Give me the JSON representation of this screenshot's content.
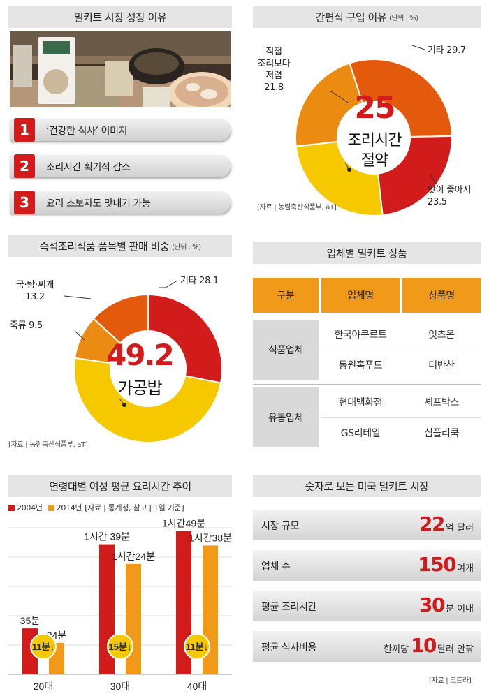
{
  "panel1": {
    "title": "밀키트 시장 성장 이유",
    "photo_alt": "밀키트 제품 사진",
    "reasons": [
      {
        "num": "1",
        "text": "‘건강한 식사’ 이미지"
      },
      {
        "num": "2",
        "text": "조리시간 획기적 감소"
      },
      {
        "num": "3",
        "text": "요리 초보자도 맛내기 가능"
      }
    ]
  },
  "panel2": {
    "title": "간편식 구입 이유",
    "unit": "(단위 : %)",
    "center_big": "25",
    "center_line1": "조리시간",
    "center_line2": "절약",
    "labels": {
      "other": [
        "기타 29.7"
      ],
      "cheap": [
        "직접",
        "조리보다",
        "저렴",
        "21.8"
      ],
      "taste": [
        "맛이 좋아서",
        "23.5"
      ]
    },
    "source": "[자료 | 농림축산식품부, aT]"
  },
  "panel3": {
    "title": "즉석조리식품 품목별 판매 비중",
    "unit": "(단위 : %)",
    "center_big": "49.2",
    "center_sub": "가공밥",
    "labels": {
      "other": [
        "기타 28.1"
      ],
      "soup": [
        "국·탕·찌개",
        "13.2"
      ],
      "porridge": [
        "죽류 9.5"
      ]
    },
    "source": "[자료 | 농림축산식품부, aT]"
  },
  "panel4": {
    "title": "업체별 밀키트 상품",
    "headers": [
      "구분",
      "업체명",
      "상품명"
    ],
    "groups": [
      {
        "category": "식품업체",
        "rows": [
          [
            "한국야쿠르트",
            "잇츠온"
          ],
          [
            "동원홈푸드",
            "더반찬"
          ]
        ]
      },
      {
        "category": "유통업체",
        "rows": [
          [
            "현대백화점",
            "셰프박스"
          ],
          [
            "GS리테일",
            "심플리쿡"
          ]
        ]
      }
    ]
  },
  "panel5": {
    "title": "연령대별 여성 평균 요리시간 추이",
    "legend": [
      "2004년",
      "2014년"
    ],
    "source": "[자료 | 통계청, 참고 | 1일 기준]",
    "bar_labels": [
      [
        "35분",
        "24분"
      ],
      [
        "1시간 39분",
        "1시간24분"
      ],
      [
        "1시간49분",
        "1시간38분"
      ]
    ],
    "diffs": [
      "11분↓",
      "15분↓",
      "11분↓"
    ]
  },
  "panel6": {
    "title": "숫자로 보는 미국 밀키트 시장",
    "stats": [
      {
        "label": "시장 규모",
        "prefix": "",
        "big": "22",
        "suffix": "억 달러"
      },
      {
        "label": "업체 수",
        "prefix": "",
        "big": "150",
        "suffix": "여개"
      },
      {
        "label": "평균 조리시간",
        "prefix": "",
        "big": "30",
        "suffix": "분 이내"
      },
      {
        "label": "평균 식사비용",
        "prefix": "한끼당",
        "big": "10",
        "suffix": "달러 안팎"
      }
    ],
    "source": "[자료 | 코트라]"
  },
  "colors": {
    "red": "#d21c1c",
    "orange_red": "#e35a0c",
    "orange": "#ec8b12",
    "yellow": "#f5c800",
    "amber": "#f19a1a",
    "header_gray": "#e5e5e5"
  },
  "chart_data": [
    {
      "type": "pie",
      "title": "간편식 구입 이유",
      "unit": "%",
      "categories": [
        "기타",
        "맛이 좋아서",
        "조리시간 절약",
        "직접 조리보다 저렴"
      ],
      "values": [
        29.7,
        23.5,
        25,
        21.8
      ]
    },
    {
      "type": "pie",
      "title": "즉석조리식품 품목별 판매 비중",
      "unit": "%",
      "categories": [
        "기타",
        "가공밥",
        "죽류",
        "국·탕·찌개"
      ],
      "values": [
        28.1,
        49.2,
        9.5,
        13.2
      ]
    },
    {
      "type": "bar",
      "title": "연령대별 여성 평균 요리시간 추이",
      "categories": [
        "20대",
        "30대",
        "40대"
      ],
      "ylabel": "",
      "series": [
        {
          "name": "2004년",
          "values": [
            35,
            99,
            109
          ]
        },
        {
          "name": "2014년",
          "values": [
            24,
            84,
            98
          ]
        }
      ],
      "ylim": [
        0,
        120
      ]
    }
  ]
}
